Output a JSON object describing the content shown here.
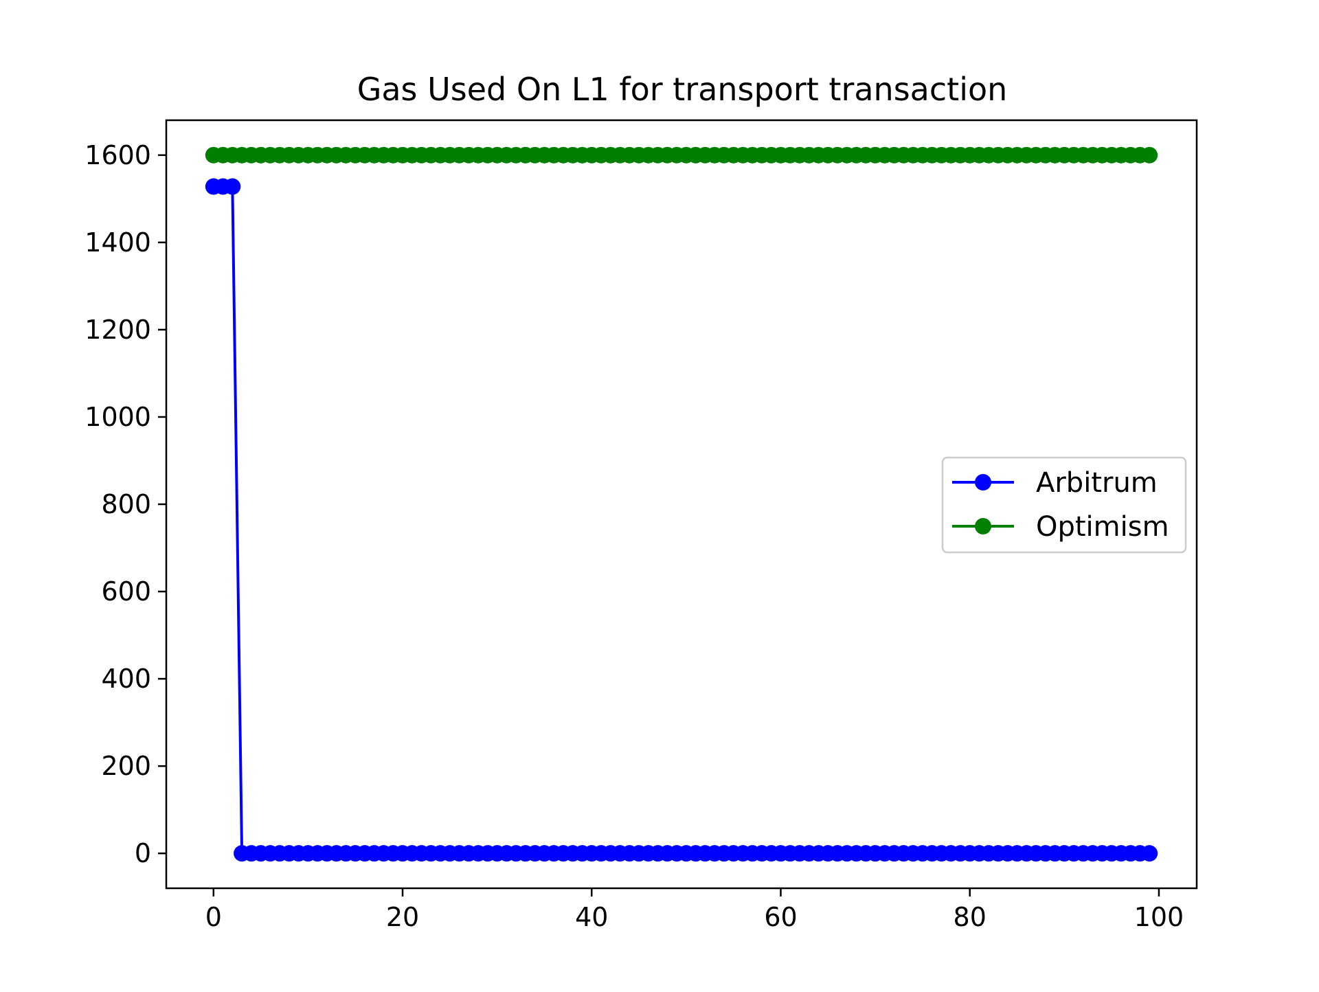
{
  "chart_data": {
    "type": "line",
    "title": "Gas Used On L1 for transport transaction",
    "xlabel": "",
    "ylabel": "",
    "xlim": [
      -5,
      104
    ],
    "ylim": [
      -80,
      1680
    ],
    "x_ticks": [
      0,
      20,
      40,
      60,
      80,
      100
    ],
    "y_ticks": [
      0,
      200,
      400,
      600,
      800,
      1000,
      1200,
      1400,
      1600
    ],
    "grid": false,
    "legend_position": "center-right",
    "series": [
      {
        "name": "Arbitrum",
        "color": "#0000ff",
        "marker": "circle",
        "x": [
          0,
          1,
          2,
          3,
          4,
          5,
          6,
          7,
          8,
          9,
          10,
          11,
          12,
          13,
          14,
          15,
          16,
          17,
          18,
          19,
          20,
          21,
          22,
          23,
          24,
          25,
          26,
          27,
          28,
          29,
          30,
          31,
          32,
          33,
          34,
          35,
          36,
          37,
          38,
          39,
          40,
          41,
          42,
          43,
          44,
          45,
          46,
          47,
          48,
          49,
          50,
          51,
          52,
          53,
          54,
          55,
          56,
          57,
          58,
          59,
          60,
          61,
          62,
          63,
          64,
          65,
          66,
          67,
          68,
          69,
          70,
          71,
          72,
          73,
          74,
          75,
          76,
          77,
          78,
          79,
          80,
          81,
          82,
          83,
          84,
          85,
          86,
          87,
          88,
          89,
          90,
          91,
          92,
          93,
          94,
          95,
          96,
          97,
          98,
          99
        ],
        "y": [
          1528,
          1528,
          1528,
          0,
          0,
          0,
          0,
          0,
          0,
          0,
          0,
          0,
          0,
          0,
          0,
          0,
          0,
          0,
          0,
          0,
          0,
          0,
          0,
          0,
          0,
          0,
          0,
          0,
          0,
          0,
          0,
          0,
          0,
          0,
          0,
          0,
          0,
          0,
          0,
          0,
          0,
          0,
          0,
          0,
          0,
          0,
          0,
          0,
          0,
          0,
          0,
          0,
          0,
          0,
          0,
          0,
          0,
          0,
          0,
          0,
          0,
          0,
          0,
          0,
          0,
          0,
          0,
          0,
          0,
          0,
          0,
          0,
          0,
          0,
          0,
          0,
          0,
          0,
          0,
          0,
          0,
          0,
          0,
          0,
          0,
          0,
          0,
          0,
          0,
          0,
          0,
          0,
          0,
          0,
          0,
          0,
          0,
          0,
          0,
          0
        ]
      },
      {
        "name": "Optimism",
        "color": "#008000",
        "marker": "circle",
        "x": [
          0,
          1,
          2,
          3,
          4,
          5,
          6,
          7,
          8,
          9,
          10,
          11,
          12,
          13,
          14,
          15,
          16,
          17,
          18,
          19,
          20,
          21,
          22,
          23,
          24,
          25,
          26,
          27,
          28,
          29,
          30,
          31,
          32,
          33,
          34,
          35,
          36,
          37,
          38,
          39,
          40,
          41,
          42,
          43,
          44,
          45,
          46,
          47,
          48,
          49,
          50,
          51,
          52,
          53,
          54,
          55,
          56,
          57,
          58,
          59,
          60,
          61,
          62,
          63,
          64,
          65,
          66,
          67,
          68,
          69,
          70,
          71,
          72,
          73,
          74,
          75,
          76,
          77,
          78,
          79,
          80,
          81,
          82,
          83,
          84,
          85,
          86,
          87,
          88,
          89,
          90,
          91,
          92,
          93,
          94,
          95,
          96,
          97,
          98,
          99
        ],
        "y": [
          1600,
          1600,
          1600,
          1600,
          1600,
          1600,
          1600,
          1600,
          1600,
          1600,
          1600,
          1600,
          1600,
          1600,
          1600,
          1600,
          1600,
          1600,
          1600,
          1600,
          1600,
          1600,
          1600,
          1600,
          1600,
          1600,
          1600,
          1600,
          1600,
          1600,
          1600,
          1600,
          1600,
          1600,
          1600,
          1600,
          1600,
          1600,
          1600,
          1600,
          1600,
          1600,
          1600,
          1600,
          1600,
          1600,
          1600,
          1600,
          1600,
          1600,
          1600,
          1600,
          1600,
          1600,
          1600,
          1600,
          1600,
          1600,
          1600,
          1600,
          1600,
          1600,
          1600,
          1600,
          1600,
          1600,
          1600,
          1600,
          1600,
          1600,
          1600,
          1600,
          1600,
          1600,
          1600,
          1600,
          1600,
          1600,
          1600,
          1600,
          1600,
          1600,
          1600,
          1600,
          1600,
          1600,
          1600,
          1600,
          1600,
          1600,
          1600,
          1600,
          1600,
          1600,
          1600,
          1600,
          1600,
          1600,
          1600,
          1600
        ]
      }
    ]
  }
}
